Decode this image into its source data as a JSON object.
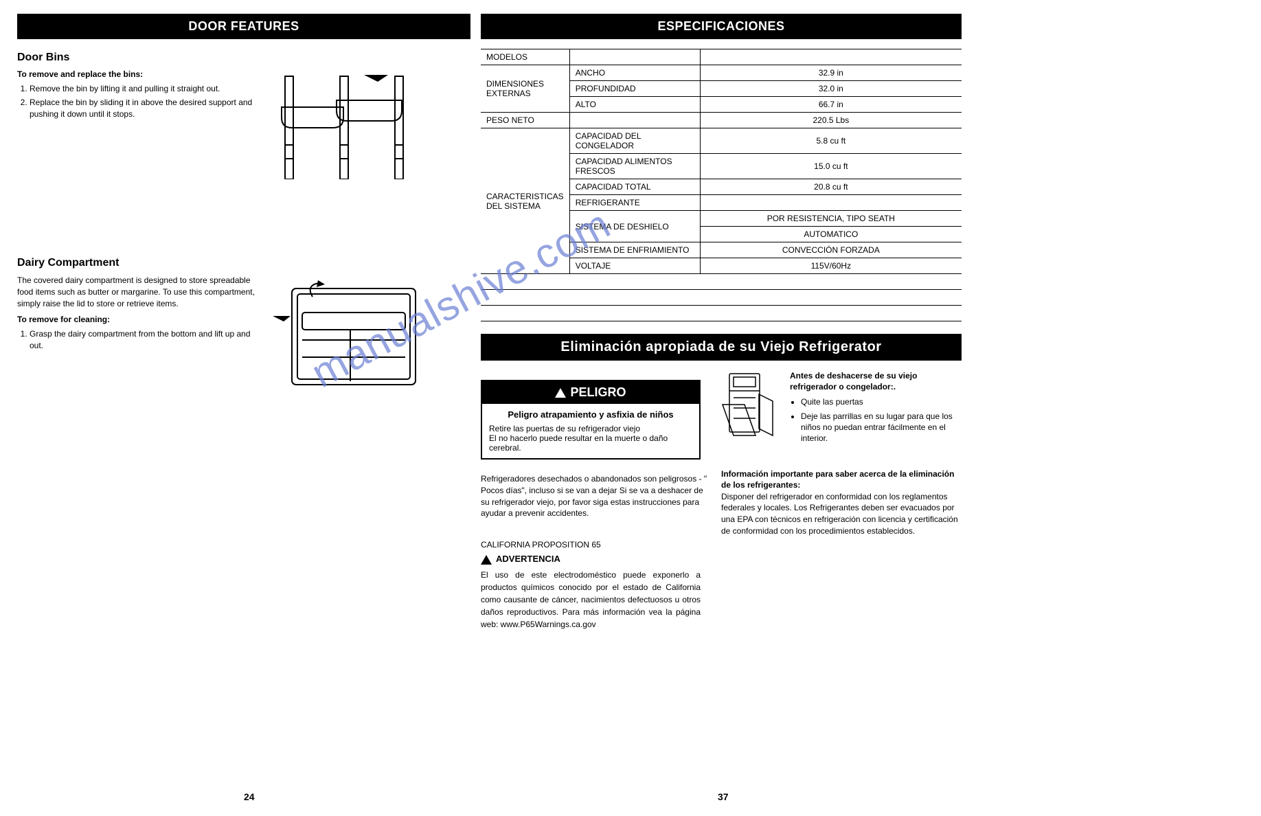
{
  "left": {
    "header": "DOOR FEATURES",
    "doorBins": {
      "title": "Door Bins",
      "sub": "To remove and replace the bins:",
      "steps": [
        "Remove the bin by lifting it and pulling it straight out.",
        "Replace the bin by sliding it in above the desired support and pushing it down until it stops."
      ]
    },
    "dairy": {
      "title": "Dairy Compartment",
      "desc": "The covered dairy compartment is designed to store spreadable food items such as butter or margarine. To use this compartment, simply raise the lid to store or retrieve items.",
      "sub": "To remove for cleaning:",
      "steps": [
        "Grasp the dairy compartment from the bottom and lift up and out."
      ]
    },
    "pageNum": "24"
  },
  "right": {
    "header": "ESPECIFICACIONES",
    "spec": {
      "rows": [
        {
          "c1": "MODELOS",
          "c2": "",
          "c3": "",
          "rowspan1": 1
        },
        {
          "c1": "DIMENSIONES EXTERNAS",
          "c2": "ANCHO",
          "c3": "32.9 in",
          "rowspan1": 3
        },
        {
          "c2": "PROFUNDIDAD",
          "c3": "32.0 in"
        },
        {
          "c2": "ALTO",
          "c3": "66.7 in"
        },
        {
          "c1": "PESO NETO",
          "c2": "",
          "c3": "220.5 Lbs",
          "rowspan1": 1,
          "mergec2c3": false,
          "fullrow": true
        },
        {
          "c1": "CARACTERISTICAS DEL SISTEMA",
          "c2": "CAPACIDAD DEL CONGELADOR",
          "c3": "5.8 cu ft",
          "rowspan1": 8
        },
        {
          "c2": "CAPACIDAD ALIMENTOS FRESCOS",
          "c3": "15.0 cu ft"
        },
        {
          "c2": "CAPACIDAD TOTAL",
          "c3": "20.8 cu ft"
        },
        {
          "c2": "REFRIGERANTE",
          "c3": ""
        },
        {
          "c2": "SISTEMA DE DESHIELO",
          "c3": "POR RESISTENCIA, TIPO SEATH",
          "rowspan2": 2
        },
        {
          "c3": "AUTOMATICO"
        },
        {
          "c2": "SISTEMA DE ENFRIAMIENTO",
          "c3": "CONVECCIÓN FORZADA"
        },
        {
          "c2": "VOLTAJE",
          "c3": "115V/60Hz"
        }
      ],
      "blankRows": 3
    },
    "elim": {
      "header": "Eliminación  apropiada de su Viejo Refrigerator",
      "peligro": {
        "title": "PELIGRO",
        "subtitle": "Peligro atrapamiento y asfixia de niños",
        "body": "Retire las puertas de su refrigerador viejo\nEl no hacerlo puede resultar en la muerte o daño cerebral."
      },
      "antes": {
        "title": "Antes de deshacerse de su viejo refrigerador o congelador:.",
        "bullets": [
          "Quite las puertas",
          "Deje las parrillas en su lugar para que los niños no puedan entrar fácilmente en el interior."
        ]
      },
      "para1": "Refrigeradores desechados o abandonados son peligrosos - \" Pocos días\", incluso si se van a dejar Si se va a deshacer de su refrigerador viejo, por favor siga estas instrucciones para ayudar a prevenir accidentes.",
      "info": {
        "title": "Información importante para saber acerca de la eliminación de los refrigerantes:",
        "body": "Disponer del refrigerador en conformidad con los reglamentos federales y locales. Los Refrigerantes deben ser evacuados por una  EPA con técnicos en refrigeración con licencia y certificación de conformidad con los procedimientos establecidos."
      },
      "prop65": {
        "title": "CALIFORNIA PROPOSITION 65",
        "adv": "ADVERTENCIA",
        "body": "El uso de este electrodoméstico puede exponerlo a productos químicos conocido por el estado de California como causante de cáncer, nacimientos defectuosos u otros daños reproductivos. Para más información vea la página web: www.P65Warnings.ca.gov"
      }
    },
    "pageNum": "37"
  },
  "watermark": "manualshive.com",
  "colors": {
    "watermark": "#6b7fd4",
    "black": "#000000",
    "white": "#ffffff"
  }
}
